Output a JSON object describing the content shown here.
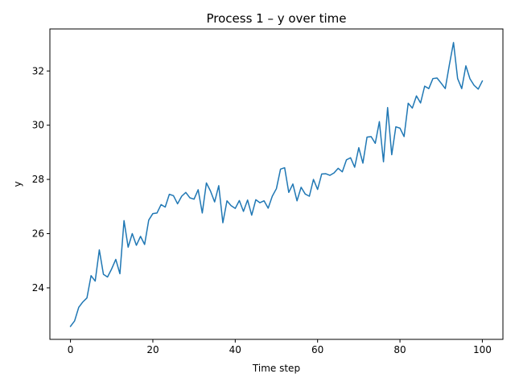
{
  "chart_data": {
    "type": "line",
    "title": "Process 1 – y over time",
    "xlabel": "Time step",
    "ylabel": "y",
    "xlim": [
      -5,
      105
    ],
    "ylim": [
      22.1,
      33.55
    ],
    "x_ticks": [
      0,
      20,
      40,
      60,
      80,
      100
    ],
    "y_ticks": [
      24,
      26,
      28,
      30,
      32
    ],
    "grid": false,
    "series": [
      {
        "color": "#1f77b4",
        "x": [
          0,
          1,
          2,
          3,
          4,
          5,
          6,
          7,
          8,
          9,
          10,
          11,
          12,
          13,
          14,
          15,
          16,
          17,
          18,
          19,
          20,
          21,
          22,
          23,
          24,
          25,
          26,
          27,
          28,
          29,
          30,
          31,
          32,
          33,
          34,
          35,
          36,
          37,
          38,
          39,
          40,
          41,
          42,
          43,
          44,
          45,
          46,
          47,
          48,
          49,
          50,
          51,
          52,
          53,
          54,
          55,
          56,
          57,
          58,
          59,
          60,
          61,
          62,
          63,
          64,
          65,
          66,
          67,
          68,
          69,
          70,
          71,
          72,
          73,
          74,
          75,
          76,
          77,
          78,
          79,
          80,
          81,
          82,
          83,
          84,
          85,
          86,
          87,
          88,
          89,
          90,
          91,
          92,
          93,
          94,
          95,
          96,
          97,
          98,
          99,
          100
        ],
        "y": [
          22.58,
          22.78,
          23.28,
          23.48,
          23.63,
          24.45,
          24.25,
          25.4,
          24.5,
          24.4,
          24.7,
          25.05,
          24.52,
          26.48,
          25.5,
          26.0,
          25.57,
          25.9,
          25.6,
          26.5,
          26.74,
          26.76,
          27.07,
          26.98,
          27.45,
          27.4,
          27.1,
          27.38,
          27.52,
          27.32,
          27.27,
          27.62,
          26.76,
          27.87,
          27.57,
          27.17,
          27.77,
          26.4,
          27.21,
          27.03,
          26.93,
          27.22,
          26.82,
          27.24,
          26.68,
          27.25,
          27.14,
          27.21,
          26.94,
          27.38,
          27.66,
          28.38,
          28.43,
          27.52,
          27.83,
          27.21,
          27.71,
          27.46,
          27.38,
          28.0,
          27.63,
          28.2,
          28.21,
          28.15,
          28.24,
          28.41,
          28.28,
          28.72,
          28.8,
          28.45,
          29.17,
          28.6,
          29.56,
          29.58,
          29.33,
          30.13,
          28.65,
          30.65,
          28.91,
          29.94,
          29.89,
          29.58,
          30.81,
          30.63,
          31.08,
          30.82,
          31.44,
          31.35,
          31.72,
          31.74,
          31.55,
          31.35,
          32.23,
          33.05,
          31.72,
          31.35,
          32.19,
          31.71,
          31.47,
          31.33,
          31.63
        ]
      }
    ]
  }
}
